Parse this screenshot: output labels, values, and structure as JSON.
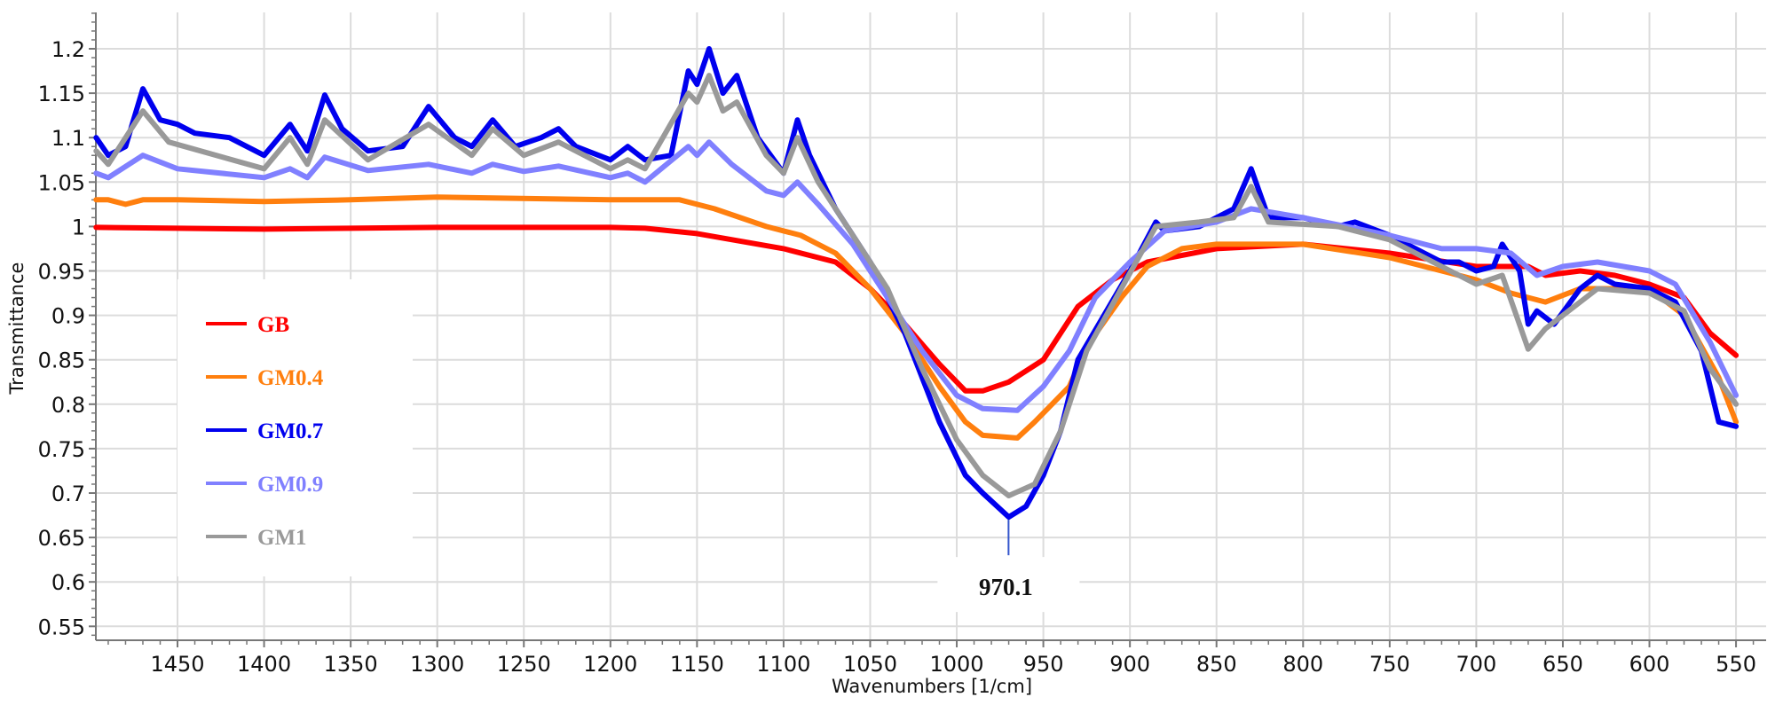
{
  "chart_data": {
    "type": "line",
    "title": "",
    "xlabel": "Wavenumbers [1/cm]",
    "ylabel": "Transmittance",
    "xlim": [
      1497,
      532
    ],
    "ylim": [
      0.534,
      1.241
    ],
    "x_reversed": true,
    "grid": true,
    "xticks": [
      1450,
      1400,
      1350,
      1300,
      1250,
      1200,
      1150,
      1100,
      1050,
      1000,
      950,
      900,
      850,
      800,
      750,
      700,
      650,
      600,
      550
    ],
    "yticks": [
      0.55,
      0.6,
      0.65,
      0.7,
      0.75,
      0.8,
      0.85,
      0.9,
      0.95,
      1,
      1.05,
      1.1,
      1.15,
      1.2
    ],
    "ytick_labels": [
      "0.55",
      "0.6",
      "0.65",
      "0.7",
      "0.75",
      "0.8",
      "0.85",
      "0.9",
      "0.95",
      "1",
      "1.05",
      "1.1",
      "1.15",
      "1.2"
    ],
    "legend_placement": "center-left",
    "annotations": [
      {
        "text": "970.1",
        "x": 970.1,
        "y": 0.673,
        "series": "GM0.7"
      }
    ],
    "series": [
      {
        "name": "GB",
        "color": "#ff0000",
        "x": [
          1497,
          1450,
          1400,
          1350,
          1300,
          1250,
          1200,
          1180,
          1150,
          1100,
          1070,
          1050,
          1030,
          1010,
          995,
          985,
          970,
          950,
          930,
          910,
          890,
          850,
          800,
          750,
          700,
          670,
          660,
          640,
          620,
          600,
          580,
          565,
          550
        ],
        "y": [
          0.999,
          0.998,
          0.997,
          0.998,
          0.999,
          0.999,
          0.999,
          0.998,
          0.992,
          0.975,
          0.96,
          0.93,
          0.89,
          0.845,
          0.815,
          0.815,
          0.825,
          0.85,
          0.91,
          0.94,
          0.96,
          0.975,
          0.98,
          0.97,
          0.955,
          0.955,
          0.945,
          0.95,
          0.945,
          0.935,
          0.92,
          0.88,
          0.855
        ]
      },
      {
        "name": "GM0.4",
        "color": "#ff7f0e",
        "x": [
          1497,
          1490,
          1480,
          1470,
          1450,
          1400,
          1350,
          1300,
          1200,
          1160,
          1140,
          1110,
          1090,
          1070,
          1050,
          1030,
          1010,
          995,
          985,
          965,
          955,
          945,
          935,
          925,
          905,
          890,
          870,
          850,
          800,
          750,
          700,
          680,
          660,
          640,
          600,
          580,
          560,
          550
        ],
        "y": [
          1.03,
          1.03,
          1.025,
          1.03,
          1.03,
          1.028,
          1.03,
          1.033,
          1.03,
          1.03,
          1.02,
          1.0,
          0.99,
          0.97,
          0.93,
          0.88,
          0.82,
          0.78,
          0.765,
          0.762,
          0.78,
          0.8,
          0.82,
          0.865,
          0.92,
          0.955,
          0.975,
          0.98,
          0.98,
          0.965,
          0.94,
          0.925,
          0.915,
          0.93,
          0.93,
          0.9,
          0.83,
          0.78
        ]
      },
      {
        "name": "GM0.7",
        "color": "#0000ee",
        "x": [
          1497,
          1490,
          1480,
          1470,
          1460,
          1450,
          1440,
          1420,
          1400,
          1385,
          1375,
          1365,
          1355,
          1340,
          1320,
          1305,
          1290,
          1280,
          1268,
          1255,
          1240,
          1230,
          1220,
          1200,
          1190,
          1180,
          1165,
          1155,
          1150,
          1143,
          1135,
          1127,
          1115,
          1100,
          1092,
          1085,
          1070,
          1050,
          1030,
          1010,
          995,
          985,
          970,
          960,
          950,
          940,
          930,
          915,
          900,
          885,
          880,
          860,
          840,
          830,
          820,
          800,
          780,
          770,
          750,
          730,
          720,
          710,
          700,
          690,
          685,
          675,
          670,
          665,
          655,
          640,
          630,
          620,
          600,
          585,
          570,
          560,
          550
        ],
        "y": [
          1.1,
          1.08,
          1.09,
          1.155,
          1.12,
          1.115,
          1.105,
          1.1,
          1.08,
          1.115,
          1.085,
          1.148,
          1.11,
          1.085,
          1.09,
          1.135,
          1.1,
          1.09,
          1.12,
          1.09,
          1.1,
          1.11,
          1.09,
          1.075,
          1.09,
          1.075,
          1.08,
          1.175,
          1.16,
          1.2,
          1.15,
          1.17,
          1.1,
          1.06,
          1.12,
          1.08,
          1.02,
          0.96,
          0.88,
          0.78,
          0.72,
          0.7,
          0.673,
          0.685,
          0.72,
          0.77,
          0.85,
          0.9,
          0.95,
          1.005,
          0.995,
          1.0,
          1.02,
          1.065,
          1.01,
          1.01,
          1.0,
          1.005,
          0.99,
          0.97,
          0.96,
          0.96,
          0.95,
          0.955,
          0.98,
          0.95,
          0.89,
          0.905,
          0.89,
          0.93,
          0.945,
          0.935,
          0.93,
          0.915,
          0.86,
          0.78,
          0.775
        ]
      },
      {
        "name": "GM0.9",
        "color": "#8080ff",
        "x": [
          1497,
          1490,
          1470,
          1450,
          1400,
          1385,
          1375,
          1365,
          1340,
          1305,
          1280,
          1268,
          1250,
          1230,
          1200,
          1190,
          1180,
          1155,
          1150,
          1143,
          1130,
          1110,
          1100,
          1092,
          1080,
          1060,
          1040,
          1020,
          1000,
          985,
          965,
          950,
          935,
          920,
          900,
          880,
          850,
          830,
          800,
          750,
          720,
          700,
          680,
          665,
          650,
          630,
          600,
          585,
          565,
          550
        ],
        "y": [
          1.06,
          1.055,
          1.08,
          1.065,
          1.055,
          1.065,
          1.055,
          1.078,
          1.063,
          1.07,
          1.06,
          1.07,
          1.062,
          1.068,
          1.055,
          1.06,
          1.05,
          1.09,
          1.08,
          1.095,
          1.07,
          1.04,
          1.035,
          1.05,
          1.025,
          0.98,
          0.92,
          0.86,
          0.81,
          0.795,
          0.793,
          0.82,
          0.86,
          0.92,
          0.96,
          0.995,
          1.005,
          1.02,
          1.01,
          0.99,
          0.975,
          0.975,
          0.97,
          0.945,
          0.955,
          0.96,
          0.95,
          0.935,
          0.87,
          0.81
        ]
      },
      {
        "name": "GM1",
        "color": "#999999",
        "x": [
          1497,
          1490,
          1470,
          1455,
          1400,
          1385,
          1375,
          1365,
          1340,
          1305,
          1280,
          1268,
          1250,
          1230,
          1200,
          1190,
          1180,
          1155,
          1150,
          1143,
          1135,
          1127,
          1110,
          1100,
          1092,
          1080,
          1060,
          1040,
          1020,
          1000,
          985,
          970,
          955,
          940,
          925,
          905,
          885,
          860,
          840,
          830,
          820,
          780,
          750,
          720,
          700,
          685,
          670,
          660,
          650,
          630,
          600,
          580,
          565,
          550
        ],
        "y": [
          1.085,
          1.07,
          1.13,
          1.095,
          1.065,
          1.1,
          1.07,
          1.12,
          1.075,
          1.115,
          1.08,
          1.11,
          1.08,
          1.095,
          1.065,
          1.075,
          1.065,
          1.15,
          1.14,
          1.17,
          1.13,
          1.14,
          1.08,
          1.06,
          1.1,
          1.05,
          0.99,
          0.93,
          0.84,
          0.76,
          0.72,
          0.697,
          0.71,
          0.77,
          0.86,
          0.93,
          1.0,
          1.005,
          1.01,
          1.045,
          1.005,
          1.0,
          0.985,
          0.955,
          0.935,
          0.945,
          0.862,
          0.885,
          0.9,
          0.93,
          0.925,
          0.905,
          0.84,
          0.8
        ]
      }
    ]
  }
}
